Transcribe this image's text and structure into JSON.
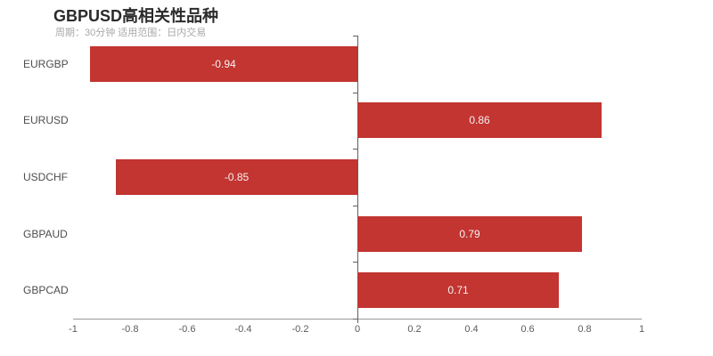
{
  "chart_data": {
    "type": "bar",
    "orientation": "horizontal",
    "title": "GBPUSD高相关性品种",
    "subtitle": "周期：30分钟 适用范围：日内交易",
    "categories": [
      "EURGBP",
      "EURUSD",
      "USDCHF",
      "GBPAUD",
      "GBPCAD"
    ],
    "values": [
      -0.94,
      0.86,
      -0.85,
      0.79,
      0.71
    ],
    "value_labels": [
      "-0.94",
      "0.86",
      "-0.85",
      "0.79",
      "0.71"
    ],
    "xlim": [
      -1,
      1
    ],
    "xtick_values": [
      -1,
      -0.8,
      -0.6,
      -0.4,
      -0.2,
      0,
      0.2,
      0.4,
      0.6,
      0.8,
      1
    ],
    "xtick_labels": [
      "-1",
      "-0.8",
      "-0.6",
      "-0.4",
      "-0.2",
      "0",
      "0.2",
      "0.4",
      "0.6",
      "0.8",
      "1"
    ],
    "xlabel": "",
    "ylabel": "",
    "grid": false,
    "legend": null,
    "colors": {
      "bar": "#c23531",
      "value_label": "#f5f1f1",
      "title": "#2b2b2b",
      "subtitle": "#a8a8a8",
      "category_label": "#4d4d4d",
      "tick_label": "#5a5a5a",
      "category_axis_line": "#606060",
      "value_axis_line": "#999999"
    }
  }
}
